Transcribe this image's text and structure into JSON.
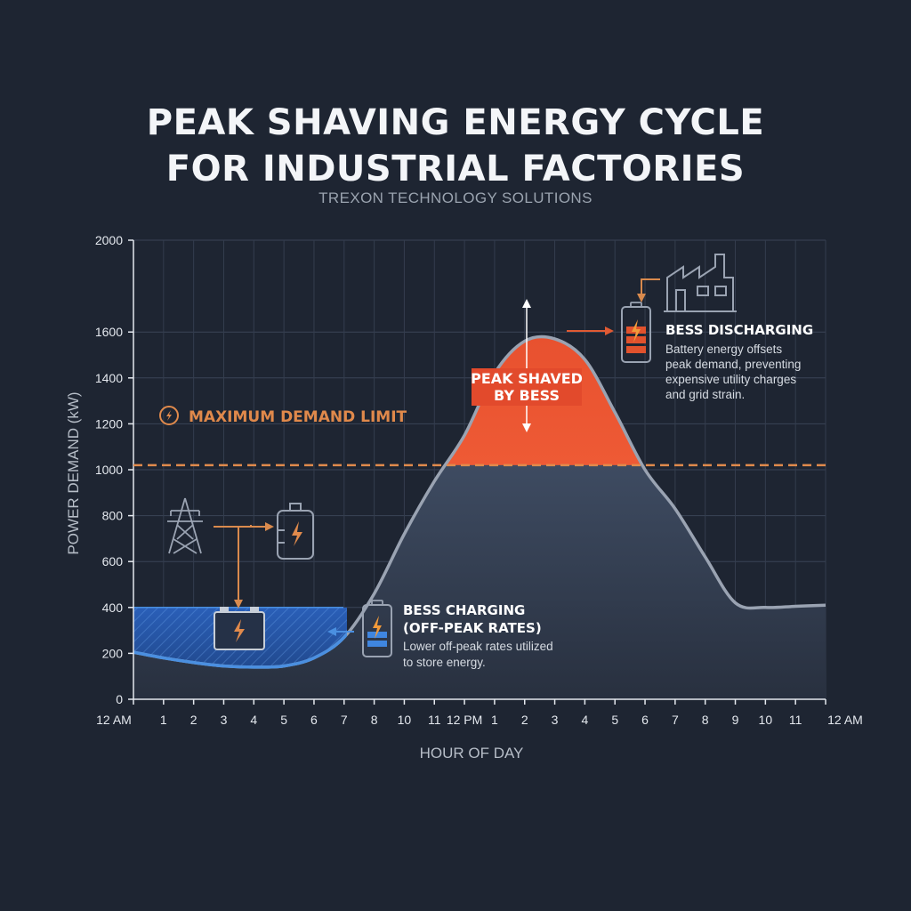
{
  "header": {
    "title_line1": "PEAK SHAVING ENERGY CYCLE",
    "title_line2": "FOR INDUSTRIAL FACTORIES",
    "subtitle": "TREXON TECHNOLOGY SOLUTIONS"
  },
  "chart_data": {
    "type": "area",
    "title": "PEAK SHAVING ENERGY CYCLE FOR INDUSTRIAL FACTORIES",
    "subtitle": "TREXON TECHNOLOGY SOLUTIONS",
    "xlabel": "HOUR OF DAY",
    "ylabel": "POWER DEMAND (kW)",
    "ylim": [
      0,
      2000
    ],
    "yticks": [
      0,
      200,
      400,
      600,
      800,
      1000,
      1200,
      1400,
      1600,
      2000
    ],
    "x_tick_labels": [
      "12 AM",
      "1",
      "2",
      "3",
      "4",
      "5",
      "6",
      "7",
      "8",
      "10",
      "11",
      "12 PM",
      "1",
      "2",
      "3",
      "4",
      "5",
      "6",
      "7",
      "8",
      "9",
      "10",
      "11",
      "12 AM"
    ],
    "grid": true,
    "series": [
      {
        "values": [
          205,
          180,
          160,
          145,
          140,
          145,
          180,
          270,
          460,
          720,
          950,
          1150,
          1420,
          1560,
          1570,
          1480,
          1250,
          1000,
          830,
          620,
          420,
          400,
          405,
          410
        ]
      }
    ],
    "demand_limit": {
      "value": 1020,
      "label": "MAXIMUM DEMAND LIMIT"
    },
    "charging_threshold": 400,
    "annotations": {
      "peak": {
        "line1": "PEAK SHAVED",
        "line2": "BY BESS"
      },
      "discharging": {
        "heading": "BESS DISCHARGING",
        "lines": [
          "Battery energy offsets",
          "peak demand, preventing",
          "expensive utility charges",
          "and grid strain."
        ]
      },
      "charging": {
        "heading_line1": "BESS CHARGING",
        "heading_line2": "(OFF-PEAK RATES)",
        "lines": [
          "Lower off-peak rates utilized",
          "to store energy."
        ]
      }
    },
    "colors": {
      "background": "#1e2532",
      "curve": "#9aa3b2",
      "area_fill": "#3c4b62",
      "peak_fill": "#e2482a",
      "charge_fill": "#2f66c2",
      "charge_line": "#4a8fe0",
      "limit": "#e08a4c"
    }
  }
}
